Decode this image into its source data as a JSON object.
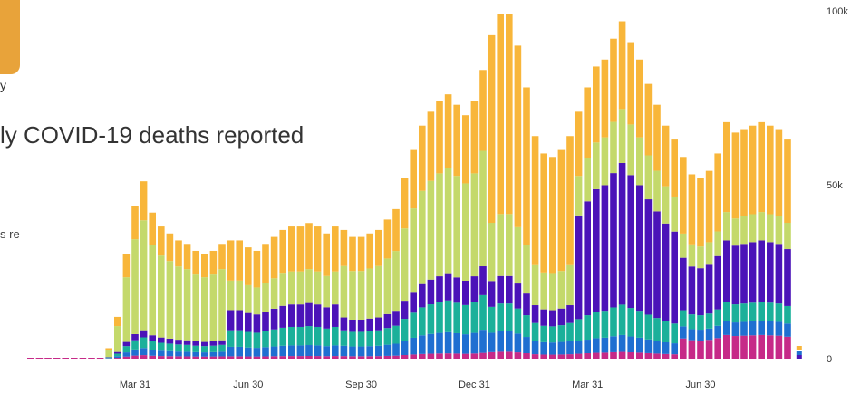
{
  "title": "ly COVID-19 deaths reported",
  "side_text": "s re",
  "logo_glyph": "y",
  "chart_data": {
    "type": "bar",
    "stacked": true,
    "title": "ly COVID-19 deaths reported",
    "y_ticks": [
      {
        "value": 100000,
        "label": "100k"
      },
      {
        "value": 50000,
        "label": "50k"
      },
      {
        "value": 0,
        "label": "0"
      }
    ],
    "ylim": [
      0,
      100000
    ],
    "x_ticks": [
      {
        "index": 12,
        "label": "Mar 31"
      },
      {
        "index": 25,
        "label": "Jun 30"
      },
      {
        "index": 38,
        "label": "Sep 30"
      },
      {
        "index": 51,
        "label": "Dec 31"
      },
      {
        "index": 64,
        "label": "Mar 31"
      },
      {
        "index": 77,
        "label": "Jun 30"
      }
    ],
    "grid": false,
    "legend": "none",
    "series_colors": [
      "#c62a88",
      "#1f6fd1",
      "#1bb09a",
      "#4b13b8",
      "#c4d96b",
      "#f8b63a"
    ],
    "totals": [
      0,
      0,
      0,
      0,
      0,
      0,
      0,
      0,
      0,
      3000,
      12000,
      30000,
      44000,
      51000,
      42000,
      38000,
      36000,
      34000,
      33000,
      31000,
      30000,
      31000,
      33000,
      34000,
      34000,
      32000,
      31000,
      33000,
      35000,
      37000,
      38000,
      38000,
      39000,
      38000,
      36000,
      38000,
      37000,
      35000,
      35000,
      36000,
      37000,
      40000,
      43000,
      52000,
      60000,
      67000,
      71000,
      74000,
      76000,
      73000,
      70000,
      74000,
      83000,
      93000,
      99000,
      99000,
      90000,
      78000,
      64000,
      59000,
      58000,
      60000,
      64000,
      71000,
      78000,
      84000,
      86000,
      92000,
      97000,
      91000,
      86000,
      79000,
      73000,
      67000,
      63000,
      58000,
      53000,
      52000,
      54000,
      59000,
      68000,
      65000,
      66000,
      67000,
      68000,
      67000,
      66000,
      63000
    ],
    "layer_fractions": [
      {
        "range": [
          0,
          22
        ],
        "fractions": [
          0.02,
          0.04,
          0.06,
          0.04,
          0.62,
          0.22
        ]
      },
      {
        "range": [
          23,
          35
        ],
        "fractions": [
          0.02,
          0.08,
          0.14,
          0.17,
          0.25,
          0.34
        ]
      },
      {
        "range": [
          36,
          52
        ],
        "fractions": [
          0.02,
          0.08,
          0.12,
          0.1,
          0.4,
          0.28
        ]
      },
      {
        "range": [
          53,
          62
        ],
        "fractions": [
          0.02,
          0.06,
          0.08,
          0.08,
          0.18,
          0.58
        ]
      },
      {
        "range": [
          63,
          74
        ],
        "fractions": [
          0.02,
          0.05,
          0.09,
          0.42,
          0.16,
          0.26
        ]
      },
      {
        "range": [
          75,
          87
        ],
        "fractions": [
          0.1,
          0.06,
          0.08,
          0.26,
          0.12,
          0.38
        ]
      }
    ]
  }
}
